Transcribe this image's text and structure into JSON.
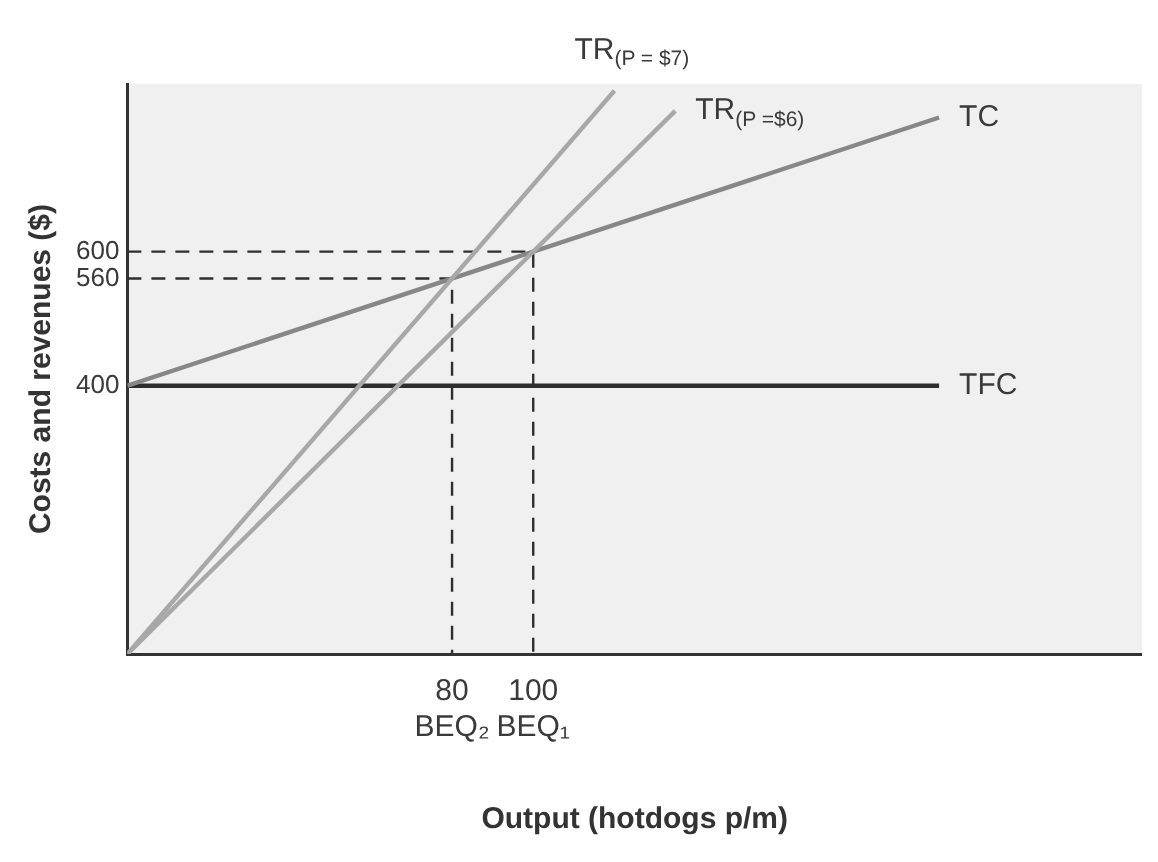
{
  "chart_data": {
    "type": "line",
    "xlabel": "Output (hotdogs p/m)",
    "ylabel": "Costs and revenues ($)",
    "xlim": [
      0,
      250
    ],
    "ylim": [
      0,
      850
    ],
    "xticks": [
      {
        "value": 80,
        "label": "80\nBEQ₂"
      },
      {
        "value": 100,
        "label": "100\nBEQ₁"
      }
    ],
    "yticks": [
      400,
      560,
      600
    ],
    "grid": false,
    "legend": false,
    "marker": "none",
    "series": [
      {
        "name": "TR$_{(P = $7)}$",
        "color": "#a8a8a8",
        "x": [
          0,
          120
        ],
        "values": [
          0,
          840
        ]
      },
      {
        "name": "TR$_{(P =$6)}$",
        "color": "#a8a8a8",
        "x": [
          0,
          135
        ],
        "values": [
          0,
          810
        ]
      },
      {
        "name": "TC",
        "color": "#878787",
        "x": [
          0,
          200
        ],
        "values": [
          400,
          800
        ]
      },
      {
        "name": "TFC",
        "color": "#2e2e2e",
        "x": [
          0,
          200
        ],
        "values": [
          400,
          400
        ]
      },
      {
        "color": "#2e2e2e",
        "line_style": "dashed",
        "x": [
          0,
          80,
          80
        ],
        "values": [
          560,
          560,
          0
        ]
      },
      {
        "color": "#2e2e2e",
        "line_style": "dashed",
        "x": [
          0,
          100,
          100
        ],
        "values": [
          600,
          600,
          0
        ]
      }
    ]
  }
}
